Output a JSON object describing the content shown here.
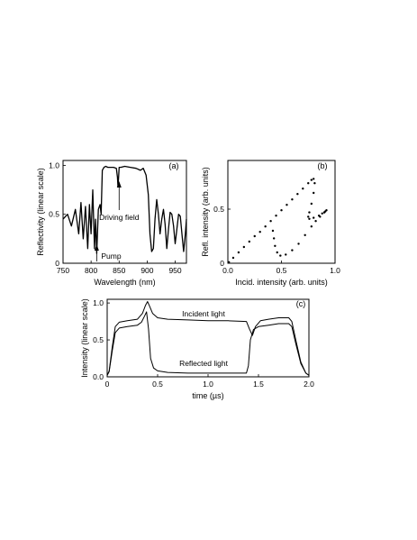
{
  "chart_data": [
    {
      "panel_label": "(a)",
      "type": "line",
      "xlabel": "Wavelength (nm)",
      "ylabel": "Reflectivity (linear scale)",
      "xlim": [
        750,
        970
      ],
      "ylim": [
        0,
        1.05
      ],
      "x_ticks": [
        "750",
        "800",
        "850",
        "900",
        "950"
      ],
      "y_ticks": [
        "0",
        "0.5",
        "1.0"
      ],
      "annotations": [
        {
          "text": "Driving field",
          "x": 850,
          "y": 0.97
        },
        {
          "text": "Pump",
          "x": 812,
          "y": 0.17
        }
      ],
      "series": [
        {
          "x": [
            750,
            758,
            765,
            772,
            778,
            782,
            786,
            790,
            794,
            797,
            800,
            803,
            806,
            808,
            810,
            813,
            816,
            818,
            820,
            823,
            826,
            830,
            835,
            840,
            845,
            847,
            848,
            849,
            850,
            851,
            853,
            860,
            870,
            880,
            888,
            893,
            898,
            902,
            905,
            908,
            911,
            914,
            917,
            920,
            923,
            926,
            929,
            932,
            935,
            938,
            941,
            944,
            947,
            950,
            953,
            956,
            959,
            962,
            965,
            968,
            970
          ],
          "y": [
            0.45,
            0.5,
            0.38,
            0.55,
            0.3,
            0.62,
            0.25,
            0.58,
            0.15,
            0.6,
            0.3,
            0.75,
            0.15,
            0.45,
            0.1,
            0.55,
            0.6,
            0.5,
            0.95,
            0.98,
            0.99,
            0.98,
            0.98,
            0.98,
            0.97,
            0.88,
            0.78,
            0.88,
            0.98,
            0.98,
            0.98,
            0.99,
            0.98,
            0.97,
            0.95,
            0.97,
            0.9,
            0.7,
            0.3,
            0.12,
            0.15,
            0.45,
            0.65,
            0.5,
            0.3,
            0.45,
            0.55,
            0.4,
            0.15,
            0.35,
            0.52,
            0.5,
            0.38,
            0.2,
            0.35,
            0.5,
            0.48,
            0.3,
            0.12,
            0.3,
            0.45
          ]
        }
      ]
    },
    {
      "panel_label": "(b)",
      "type": "scatter",
      "xlabel": "Incid. intensity (arb. units)",
      "ylabel": "Refl. intensity (arb. units)",
      "xlim": [
        0,
        1.0
      ],
      "ylim": [
        0,
        0.95
      ],
      "x_ticks": [
        "0.0",
        "0.5",
        "1.0"
      ],
      "y_ticks": [
        "0",
        "0.5"
      ],
      "series": [
        {
          "x": [
            0.01,
            0.05,
            0.1,
            0.15,
            0.2,
            0.25,
            0.3,
            0.35,
            0.4,
            0.45,
            0.5,
            0.55,
            0.6,
            0.65,
            0.7,
            0.75,
            0.78,
            0.8,
            0.81,
            0.8,
            0.78,
            0.76,
            0.75,
            0.76,
            0.8,
            0.85,
            0.88,
            0.9,
            0.91,
            0.92,
            0.9,
            0.86,
            0.82,
            0.78,
            0.72,
            0.66,
            0.6,
            0.54,
            0.49,
            0.46,
            0.44,
            0.43,
            0.42
          ],
          "y": [
            0.01,
            0.05,
            0.1,
            0.15,
            0.2,
            0.25,
            0.29,
            0.34,
            0.39,
            0.44,
            0.49,
            0.54,
            0.59,
            0.64,
            0.69,
            0.74,
            0.77,
            0.78,
            0.74,
            0.65,
            0.55,
            0.47,
            0.43,
            0.41,
            0.42,
            0.44,
            0.46,
            0.47,
            0.48,
            0.49,
            0.47,
            0.43,
            0.39,
            0.34,
            0.26,
            0.18,
            0.12,
            0.08,
            0.07,
            0.1,
            0.16,
            0.23,
            0.3
          ]
        }
      ]
    },
    {
      "panel_label": "(c)",
      "type": "line",
      "xlabel": "time (µs)",
      "ylabel": "Intensity (linear scale)",
      "xlim": [
        0,
        2.0
      ],
      "ylim": [
        0,
        1.05
      ],
      "x_ticks": [
        "0",
        "0.5",
        "1.0",
        "1.5",
        "2.0"
      ],
      "y_ticks": [
        "0.0",
        "0.5",
        "1.0"
      ],
      "series": [
        {
          "name": "Incident light",
          "x": [
            0,
            0.02,
            0.05,
            0.08,
            0.12,
            0.2,
            0.3,
            0.35,
            0.38,
            0.4,
            0.42,
            0.45,
            0.5,
            0.6,
            0.8,
            1.0,
            1.2,
            1.38,
            1.41,
            1.44,
            1.47,
            1.52,
            1.6,
            1.7,
            1.8,
            1.83,
            1.87,
            1.92,
            1.97,
            2.0
          ],
          "y": [
            0.02,
            0.08,
            0.4,
            0.68,
            0.74,
            0.76,
            0.78,
            0.86,
            0.97,
            1.02,
            0.96,
            0.86,
            0.8,
            0.78,
            0.77,
            0.76,
            0.76,
            0.75,
            0.65,
            0.56,
            0.68,
            0.76,
            0.78,
            0.8,
            0.8,
            0.75,
            0.5,
            0.2,
            0.05,
            0.02
          ]
        },
        {
          "name": "Reflected light",
          "x": [
            0,
            0.02,
            0.05,
            0.08,
            0.12,
            0.2,
            0.3,
            0.34,
            0.37,
            0.39,
            0.41,
            0.43,
            0.46,
            0.5,
            0.6,
            0.8,
            1.0,
            1.2,
            1.38,
            1.4,
            1.42,
            1.45,
            1.5,
            1.6,
            1.7,
            1.8,
            1.83,
            1.87,
            1.92,
            1.97,
            2.0
          ],
          "y": [
            0.02,
            0.07,
            0.35,
            0.6,
            0.66,
            0.68,
            0.7,
            0.74,
            0.82,
            0.88,
            0.65,
            0.25,
            0.12,
            0.08,
            0.06,
            0.05,
            0.05,
            0.05,
            0.05,
            0.15,
            0.5,
            0.64,
            0.68,
            0.7,
            0.72,
            0.72,
            0.68,
            0.45,
            0.18,
            0.05,
            0.02
          ]
        }
      ]
    }
  ]
}
